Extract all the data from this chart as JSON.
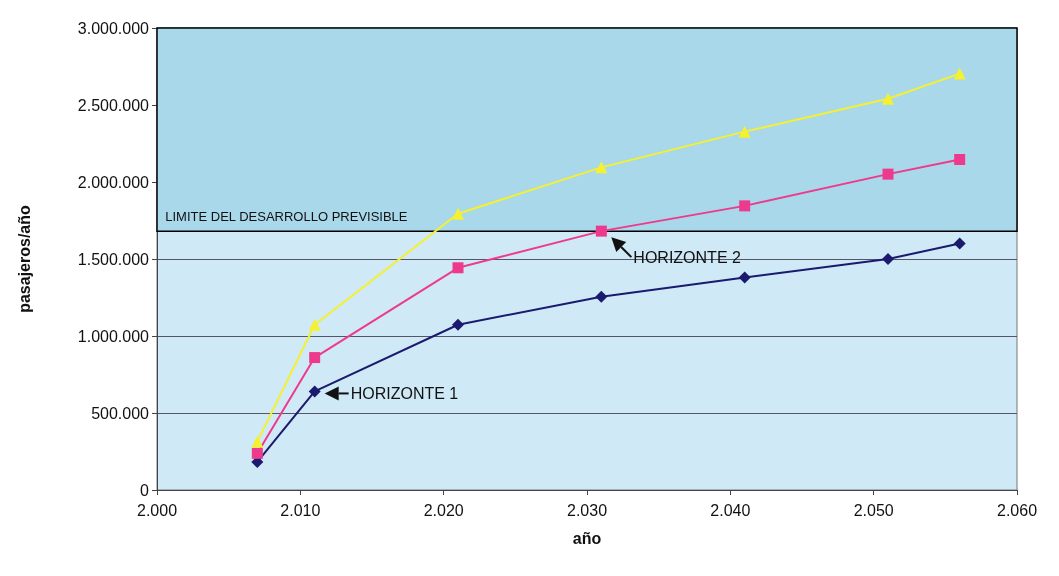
{
  "chart_data": {
    "type": "line",
    "xlabel": "año",
    "ylabel": "pasajeros/año",
    "x": [
      2007,
      2011,
      2021,
      2031,
      2041,
      2051,
      2056
    ],
    "series": [
      {
        "color": "#1a1a6e",
        "marker": "diamond",
        "values": [
          182000,
          640000,
          1073000,
          1255000,
          1380000,
          1500000,
          1600000
        ]
      },
      {
        "color": "#ee3a8c",
        "marker": "square",
        "values": [
          238000,
          860000,
          1443000,
          1681000,
          1845000,
          2051000,
          2146000
        ]
      },
      {
        "color": "#f5f030",
        "marker": "triangle",
        "values": [
          314000,
          1073000,
          1794000,
          2095000,
          2327000,
          2541000,
          2704000
        ]
      }
    ],
    "xlim": [
      2000,
      2060
    ],
    "xticks": [
      {
        "value": 2000,
        "label": "2.000"
      },
      {
        "value": 2010,
        "label": "2.010"
      },
      {
        "value": 2020,
        "label": "2.020"
      },
      {
        "value": 2030,
        "label": "2.030"
      },
      {
        "value": 2040,
        "label": "2.040"
      },
      {
        "value": 2050,
        "label": "2.050"
      },
      {
        "value": 2060,
        "label": "2.060"
      }
    ],
    "ylim": [
      0,
      3000000
    ],
    "yticks": [
      0,
      {
        "value": 500000,
        "label": "500.000"
      },
      {
        "value": 1000000,
        "label": "1.000.000"
      },
      {
        "value": 1500000,
        "label": "1.500.000"
      },
      {
        "value": 2000000,
        "label": "2.000.000"
      },
      {
        "value": 2500000,
        "label": "2.500.000"
      },
      {
        "value": 3000000,
        "label": "3.000.000"
      }
    ],
    "bands": [
      {
        "axis": "y",
        "from": 1680000,
        "to": 3000000,
        "label": "LIMITE DEL DESARROLLO PREVISIBLE",
        "color": "#a9d8ea"
      }
    ],
    "annotations": [
      {
        "text": "HORIZONTE 1",
        "x": 2011,
        "y": 640000
      },
      {
        "text": "HORIZONTE 2",
        "x": 2031,
        "y": 1681000
      }
    ],
    "grid": "y",
    "line_style": "solid"
  }
}
